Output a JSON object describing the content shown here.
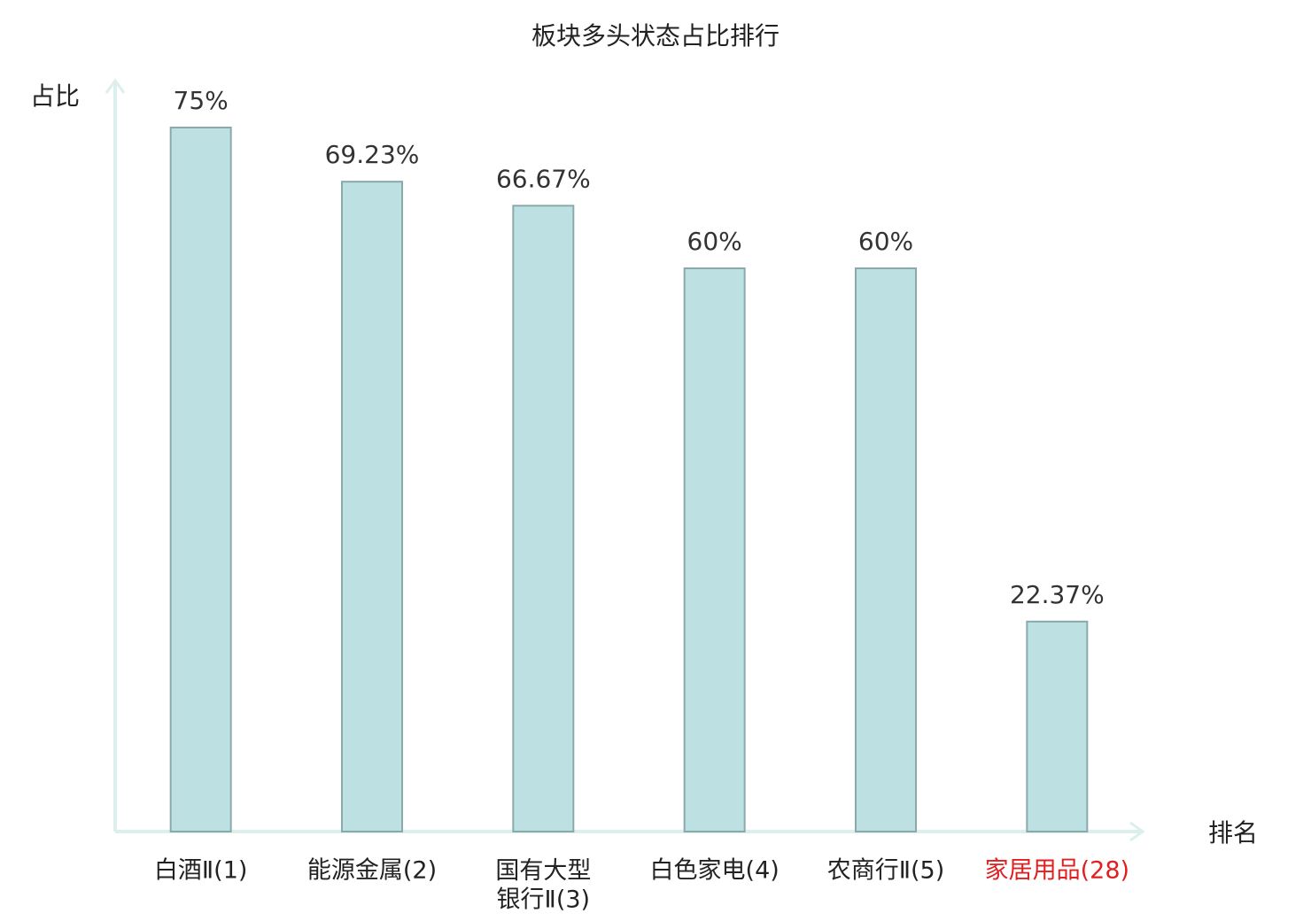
{
  "chart_data": {
    "type": "bar",
    "title": "板块多头状态占比排行",
    "y_label": "占比",
    "x_label": "排名",
    "categories": [
      "白酒Ⅱ(1)",
      "能源金属(2)",
      "国有大型\n银行Ⅱ(3)",
      "白色家电(4)",
      "农商行Ⅱ(5)",
      "家居用品(28)"
    ],
    "category_colors": [
      "#222222",
      "#222222",
      "#222222",
      "#222222",
      "#222222",
      "#e02020"
    ],
    "values": [
      75,
      69.23,
      66.67,
      60,
      60,
      22.37
    ],
    "value_labels": [
      "75%",
      "69.23%",
      "66.67%",
      "60%",
      "60%",
      "22.37%"
    ],
    "color": "#bde0e2",
    "edge_color": "#8aa9ab",
    "axis_color": "#dcefec",
    "ylim": [
      0,
      80
    ]
  }
}
